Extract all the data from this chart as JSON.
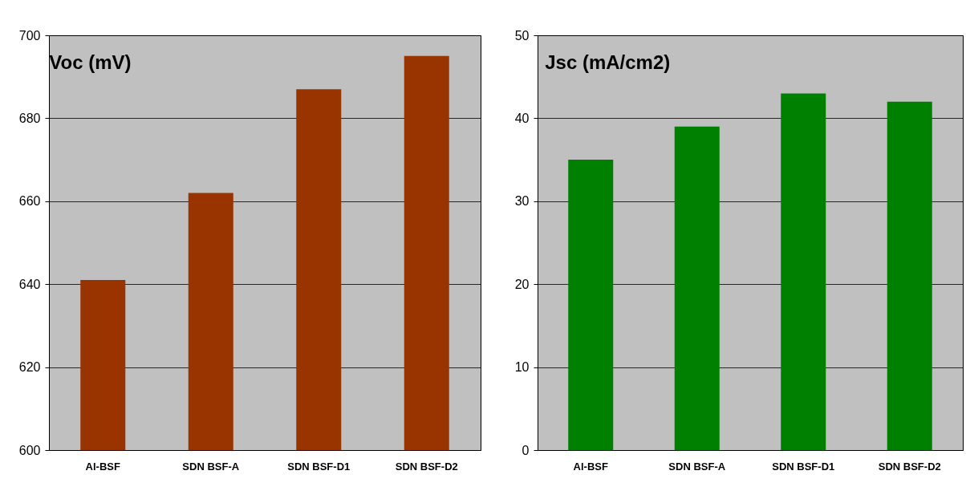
{
  "chart_data": [
    {
      "type": "bar",
      "title": "Voc (mV)",
      "categories": [
        "Al-BSF",
        "SDN BSF-A",
        "SDN BSF-D1",
        "SDN BSF-D2"
      ],
      "values": [
        641,
        662,
        687,
        695
      ],
      "color": "#993300",
      "ylim": [
        600,
        700
      ],
      "yticks": [
        600,
        620,
        640,
        660,
        680,
        700
      ],
      "grid": "y"
    },
    {
      "type": "bar",
      "title": "Jsc (mA/cm2)",
      "categories": [
        "Al-BSF",
        "SDN BSF-A",
        "SDN BSF-D1",
        "SDN BSF-D2"
      ],
      "values": [
        35,
        39,
        43,
        42
      ],
      "color": "#008000",
      "ylim": [
        0,
        50
      ],
      "yticks": [
        0,
        10,
        20,
        30,
        40,
        50
      ],
      "grid": "y"
    }
  ]
}
